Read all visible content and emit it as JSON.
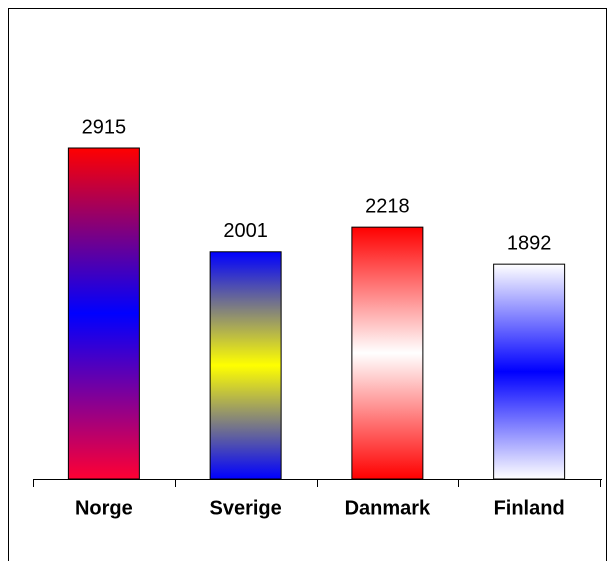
{
  "chart_data": {
    "type": "bar",
    "categories": [
      "Norge",
      "Sverige",
      "Danmark",
      "Finland"
    ],
    "values": [
      2915,
      2001,
      2218,
      1892
    ],
    "gradients": [
      [
        "#ff0000",
        "#0000ff",
        "#ff0033"
      ],
      [
        "#0000ff",
        "#ffff00",
        "#0000ff"
      ],
      [
        "#ff0000",
        "#ffffff",
        "#ff0000"
      ],
      [
        "#ffffff",
        "#0000ff",
        "#ffffff"
      ]
    ]
  }
}
